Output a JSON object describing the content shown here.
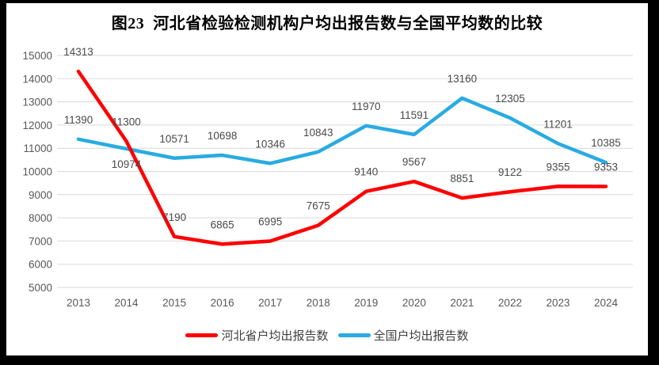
{
  "title": "图23  河北省检验检测机构户均出报告数与全国平均数的比较",
  "chart_data": {
    "type": "line",
    "categories": [
      "2013",
      "2014",
      "2015",
      "2016",
      "2017",
      "2018",
      "2019",
      "2020",
      "2021",
      "2022",
      "2023",
      "2024"
    ],
    "series": [
      {
        "name": "河北省户均出报告数",
        "color": "#FE0000",
        "values": [
          14313,
          11300,
          7190,
          6865,
          6995,
          7675,
          9140,
          9567,
          8851,
          9122,
          9355,
          9353
        ],
        "label_side": [
          "above",
          "above",
          "above",
          "above",
          "above",
          "above",
          "above",
          "above",
          "above",
          "above",
          "above",
          "above"
        ]
      },
      {
        "name": "全国户均出报告数",
        "color": "#29ABE2",
        "values": [
          11390,
          10974,
          10571,
          10698,
          10346,
          10843,
          11970,
          11591,
          13160,
          12305,
          11201,
          10385
        ],
        "label_side": [
          "above",
          "below",
          "above",
          "above",
          "above",
          "above",
          "above",
          "above",
          "above",
          "above",
          "above",
          "above"
        ]
      }
    ],
    "title": "图23  河北省检验检测机构户均出报告数与全国平均数的比较",
    "xlabel": "",
    "ylabel": "",
    "ylim": [
      5000,
      15000
    ],
    "ytick_step": 1000,
    "grid": true,
    "grid_color": "#D9D9D9",
    "legend_position": "bottom",
    "data_labels": true
  }
}
